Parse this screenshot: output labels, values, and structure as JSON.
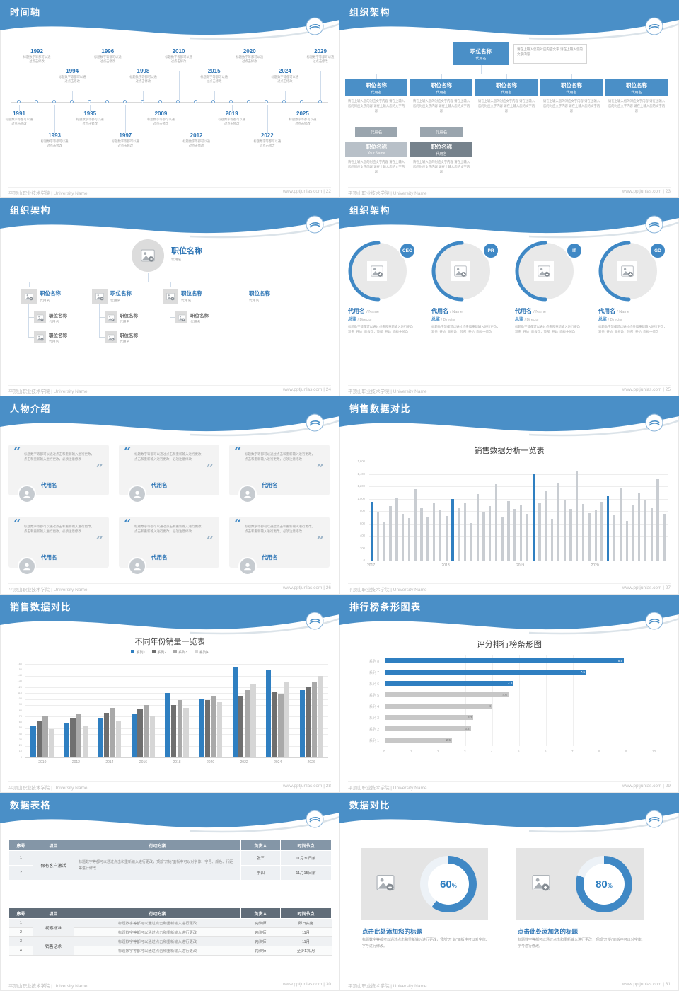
{
  "colors": {
    "header_blue": "#4a8fc7",
    "accent": "#2e75b5",
    "bar_blue": "#2f7fc1",
    "bar_gray": "#c9cdd2",
    "panel_gray": "#e4e4e4"
  },
  "footer": {
    "left": "平顶山职业技术学院 | University Name",
    "site": "www.pptjunlas.com"
  },
  "slides": {
    "timeline": {
      "title": "时间轴",
      "page": "22",
      "footer_right": "www.pptjunlas.com | 22",
      "caption": "标题数字等都可以通过点击修改",
      "items": [
        {
          "year": "1991",
          "side": "bottom"
        },
        {
          "year": "1992",
          "side": "top"
        },
        {
          "year": "1993",
          "side": "bottom"
        },
        {
          "year": "1994",
          "side": "top"
        },
        {
          "year": "1995",
          "side": "bottom"
        },
        {
          "year": "1996",
          "side": "top"
        },
        {
          "year": "1997",
          "side": "bottom"
        },
        {
          "year": "1998",
          "side": "top"
        },
        {
          "year": "2009",
          "side": "bottom"
        },
        {
          "year": "2010",
          "side": "top"
        },
        {
          "year": "2012",
          "side": "bottom"
        },
        {
          "year": "2015",
          "side": "top"
        },
        {
          "year": "2019",
          "side": "bottom"
        },
        {
          "year": "2020",
          "side": "top"
        },
        {
          "year": "2022",
          "side": "bottom"
        },
        {
          "year": "2024",
          "side": "top"
        },
        {
          "year": "2025",
          "side": "bottom"
        },
        {
          "year": "2029",
          "side": "top"
        }
      ]
    },
    "org_boxes": {
      "title": "组织架构",
      "page": "23",
      "footer_right": "www.pptjunlas.com | 23",
      "top": {
        "title": "职位名称",
        "sub": "代用名"
      },
      "note": "请在上输入您的对应内容文字 请在上输入您的文字内容",
      "columns": [
        {
          "title": "职位名称",
          "sub": "代用名"
        },
        {
          "title": "职位名称",
          "sub": "代用名"
        },
        {
          "title": "职位名称",
          "sub": "代用名"
        },
        {
          "title": "职位名称",
          "sub": "代用名"
        },
        {
          "title": "职位名称",
          "sub": "代用名"
        }
      ],
      "column_text": "请在上输入您的对应文字内容 请在上输入您的对应文字内容 请在上输入您的文字内容",
      "chips": [
        "代用名",
        "代用名"
      ],
      "bottom": [
        {
          "title": "职位名称",
          "sub": "Your Name"
        },
        {
          "title": "职位名称",
          "sub": "代用名"
        }
      ],
      "bottom_text": "请在上输入您的对应文字内容 请在上输入您的对应文字内容 请在上输入您的文字内容"
    },
    "org_tree": {
      "title": "组织架构",
      "page": "24",
      "footer_right": "www.pptjunlas.com | 24",
      "root": {
        "title": "职位名称",
        "sub": "代用名"
      },
      "children": [
        {
          "title": "职位名称",
          "sub": "代用名"
        },
        {
          "title": "职位名称",
          "sub": "代用名"
        },
        {
          "title": "职位名称",
          "sub": "代用名"
        },
        {
          "title": "职位名称",
          "sub": "代用名"
        }
      ],
      "subs": [
        [
          {
            "title": "职位名称",
            "sub": "代用名"
          },
          {
            "title": "职位名称",
            "sub": "代用名"
          }
        ],
        [
          {
            "title": "职位名称",
            "sub": "代用名"
          },
          {
            "title": "职位名称",
            "sub": "代用名"
          }
        ],
        [
          {
            "title": "职位名称",
            "sub": "代用名"
          }
        ],
        []
      ]
    },
    "org_circles": {
      "title": "组织架构",
      "page": "25",
      "footer_right": "www.pptjunlas.com | 25",
      "badges": [
        "CEO",
        "PR",
        "IT",
        "GD"
      ],
      "name": "代用名",
      "name_suffix": "/ Name",
      "role": "总监",
      "role_suffix": "/ Director",
      "desc": "标题数字等都可以通过点击和重新输入进行更改，双击 “开始” 面板改，顶部 “开始” 面板中修改"
    },
    "people": {
      "title": "人物介绍",
      "page": "26",
      "footer_right": "www.pptjunlas.com | 26",
      "quote": "标题数字等都可以通过点击和重新输入进行更改，点击和重新输入进行更改，必须注意修改",
      "cards": [
        {
          "name": "代用名"
        },
        {
          "name": "代用名"
        },
        {
          "name": "代用名"
        },
        {
          "name": "代用名"
        },
        {
          "name": "代用名"
        },
        {
          "name": "代用名"
        }
      ]
    },
    "sales_chart": {
      "title": "销售数据对比",
      "page": "27",
      "footer_right": "www.pptjunlas.com | 27",
      "chart_data": {
        "type": "bar",
        "title": "销售数据分析一览表",
        "groups": [
          "2017",
          "2018",
          "2019",
          "2020"
        ],
        "values": [
          950,
          780,
          620,
          880,
          1020,
          750,
          690,
          1150,
          860,
          700,
          940,
          810,
          720,
          1000,
          850,
          930,
          610,
          1080,
          790,
          880,
          1230,
          700,
          960,
          830,
          890,
          760,
          1390,
          940,
          1120,
          680,
          1260,
          980,
          840,
          1440,
          910,
          770,
          820,
          950,
          1040,
          730,
          1180,
          640,
          900,
          1100,
          980,
          860,
          1310,
          750
        ],
        "highlight_indices": [
          0,
          13,
          26,
          38
        ],
        "ylim": [
          0,
          1600
        ],
        "ytick_labels": [
          "0",
          "200",
          "400",
          "600",
          "800",
          "1,000",
          "1,200",
          "1,400",
          "1,600"
        ],
        "bar_color": "#c9cdd2",
        "highlight_color": "#2f7fc1"
      }
    },
    "sales_grouped": {
      "title": "销售数据对比",
      "page": "28",
      "footer_right": "www.pptjunlas.com | 28",
      "chart_data": {
        "type": "bar",
        "title": "不同年份销量一览表",
        "categories": [
          "2010",
          "2012",
          "2014",
          "2016",
          "2018",
          "2020",
          "2022",
          "2024",
          "2026"
        ],
        "series": [
          {
            "name": "系列1",
            "color": "#2f7fc1",
            "values": [
              55,
              60,
              68,
              75,
              110,
              100,
              155,
              150,
              115
            ]
          },
          {
            "name": "系列2",
            "color": "#6f6f6f",
            "values": [
              62,
              68,
              76,
              83,
              90,
              98,
              105,
              112,
              120
            ]
          },
          {
            "name": "系列3",
            "color": "#a9a9a9",
            "values": [
              70,
              75,
              85,
              90,
              98,
              105,
              115,
              108,
              128
            ]
          },
          {
            "name": "系列4",
            "color": "#d6d6d6",
            "values": [
              48,
              55,
              63,
              72,
              85,
              95,
              125,
              130,
              140
            ]
          }
        ],
        "ylim": [
          0,
          160
        ],
        "ytick_step": 10
      }
    },
    "ranking": {
      "title": "排行榜条形图表",
      "page": "29",
      "footer_right": "www.pptjunlas.com | 29",
      "chart_data": {
        "type": "bar",
        "orientation": "horizontal",
        "title": "评分排行榜条形图",
        "categories": [
          "系列 8",
          "系列 7",
          "系列 6",
          "系列 5",
          "系列 4",
          "系列 3",
          "系列 2",
          "系列 1"
        ],
        "values": [
          8.9,
          7.5,
          4.8,
          4.6,
          4,
          3.3,
          3.2,
          2.5
        ],
        "colors": [
          "#2f7fc1",
          "#2f7fc1",
          "#2f7fc1",
          "#c7c7c7",
          "#c7c7c7",
          "#c7c7c7",
          "#c7c7c7",
          "#c7c7c7"
        ],
        "xlim": [
          0,
          10
        ]
      }
    },
    "tables": {
      "title": "数据表格",
      "page": "30",
      "footer_right": "www.pptjunlas.com | 30",
      "headers": [
        "序号",
        "项目",
        "行动方案",
        "负责人",
        "时间节点"
      ],
      "table1": {
        "item": "保有客户激活",
        "plan": "标题数字等都可以通过点击和重新输入进行更改，顶部“开始”面板中可以对字体、字号、颜色、行距等进行修改",
        "rows": [
          {
            "no": "1",
            "owner": "张三",
            "time": "11月30日前"
          },
          {
            "no": "2",
            "owner": "李四",
            "time": "11月15日前"
          }
        ]
      },
      "table2": {
        "plan": "标题数字等都可以通过点击和重新输入进行更改",
        "groups": [
          {
            "item": "视察标准",
            "rows": [
              {
                "no": "1",
                "owner": "内训师",
                "time": "即日实施"
              },
              {
                "no": "2",
                "owner": "内训师",
                "time": "11月"
              }
            ]
          },
          {
            "item": "销售话术",
            "rows": [
              {
                "no": "3",
                "owner": "内训师",
                "time": "11月"
              },
              {
                "no": "4",
                "owner": "内训师",
                "time": "至少1次/月"
              }
            ]
          }
        ]
      }
    },
    "compare": {
      "title": "数据对比",
      "page": "31",
      "footer_right": "www.pptjunlas.com | 31",
      "heading": "点击此处添加您的标题",
      "desc": "标题数字等都可以通过点击和重新输入进行更改，顶部“开 始”面板中可以对字体、字号进行修改。",
      "panels": [
        {
          "percent": 60,
          "label": "60%"
        },
        {
          "percent": 80,
          "label": "80%"
        }
      ]
    }
  }
}
